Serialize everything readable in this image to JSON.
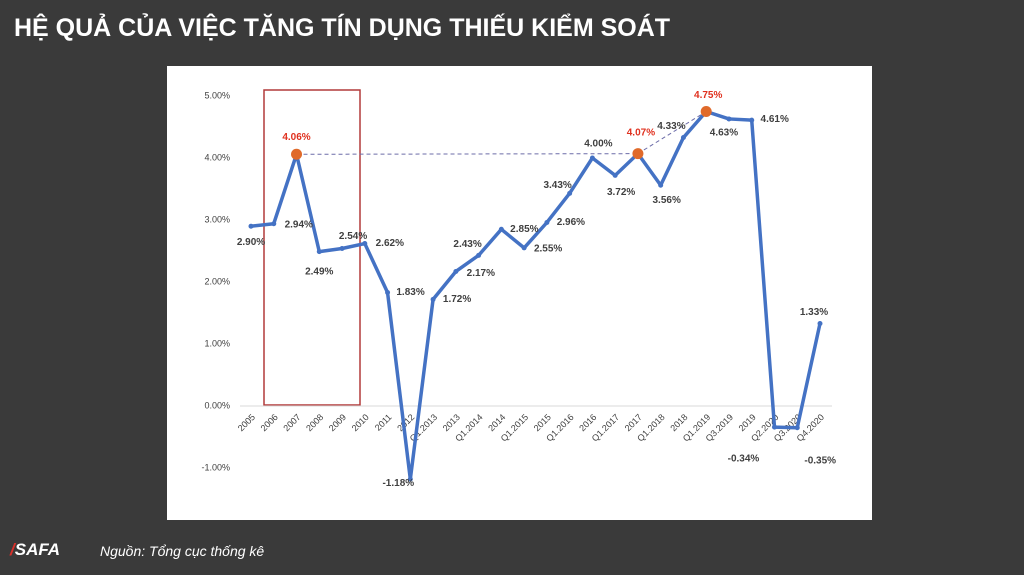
{
  "title": "HỆ QUẢ CỦA VIỆC TĂNG TÍN DỤNG THIẾU KIỂM SOÁT",
  "source": "Nguồn: Tổng cục thống kê",
  "logo": "SAFA",
  "chart_data": {
    "type": "line",
    "categories": [
      "2005",
      "2006",
      "2007",
      "2008",
      "2009",
      "2010",
      "2011",
      "2012",
      "Q1.2013",
      "2013",
      "Q1.2014",
      "2014",
      "Q1.2015",
      "2015",
      "Q1.2016",
      "2016",
      "Q1.2017",
      "2017",
      "Q1.2018",
      "2018",
      "Q1.2019",
      "Q3.2019",
      "2019",
      "Q2.2020",
      "Q3.2020",
      "Q4.2020"
    ],
    "values": [
      2.9,
      2.94,
      4.06,
      2.49,
      2.54,
      2.62,
      1.83,
      -1.18,
      1.72,
      2.17,
      2.43,
      2.85,
      2.55,
      2.96,
      3.43,
      4.0,
      3.72,
      4.07,
      3.56,
      4.33,
      4.75,
      4.63,
      4.61,
      -0.34,
      -0.35,
      1.33
    ],
    "value_labels": [
      "2.90%",
      "2.94%",
      "4.06%",
      "2.49%",
      "2.54%",
      "2.62%",
      "1.83%",
      "-1.18%",
      "1.72%",
      "2.17%",
      "2.43%",
      "2.85%",
      "2.55%",
      "2.96%",
      "3.43%",
      "4.00%",
      "3.72%",
      "4.07%",
      "3.56%",
      "4.33%",
      "4.75%",
      "4.63%",
      "4.61%",
      "-0.34%",
      "-0.35%",
      "1.33%"
    ],
    "color": "#4472c4",
    "highlight_points": [
      2,
      17,
      20
    ],
    "highlight_color": "#e0301e",
    "ylim": [
      -1.3,
      5.2
    ],
    "yticks": [
      {
        "value": -1,
        "label": "-1.00%"
      },
      {
        "value": 0,
        "label": "0.00%"
      },
      {
        "value": 1,
        "label": "1.00%"
      },
      {
        "value": 2,
        "label": "2.00%"
      },
      {
        "value": 3,
        "label": "3.00%"
      },
      {
        "value": 4,
        "label": "4.00%"
      },
      {
        "value": 5,
        "label": "5.00%"
      }
    ]
  }
}
